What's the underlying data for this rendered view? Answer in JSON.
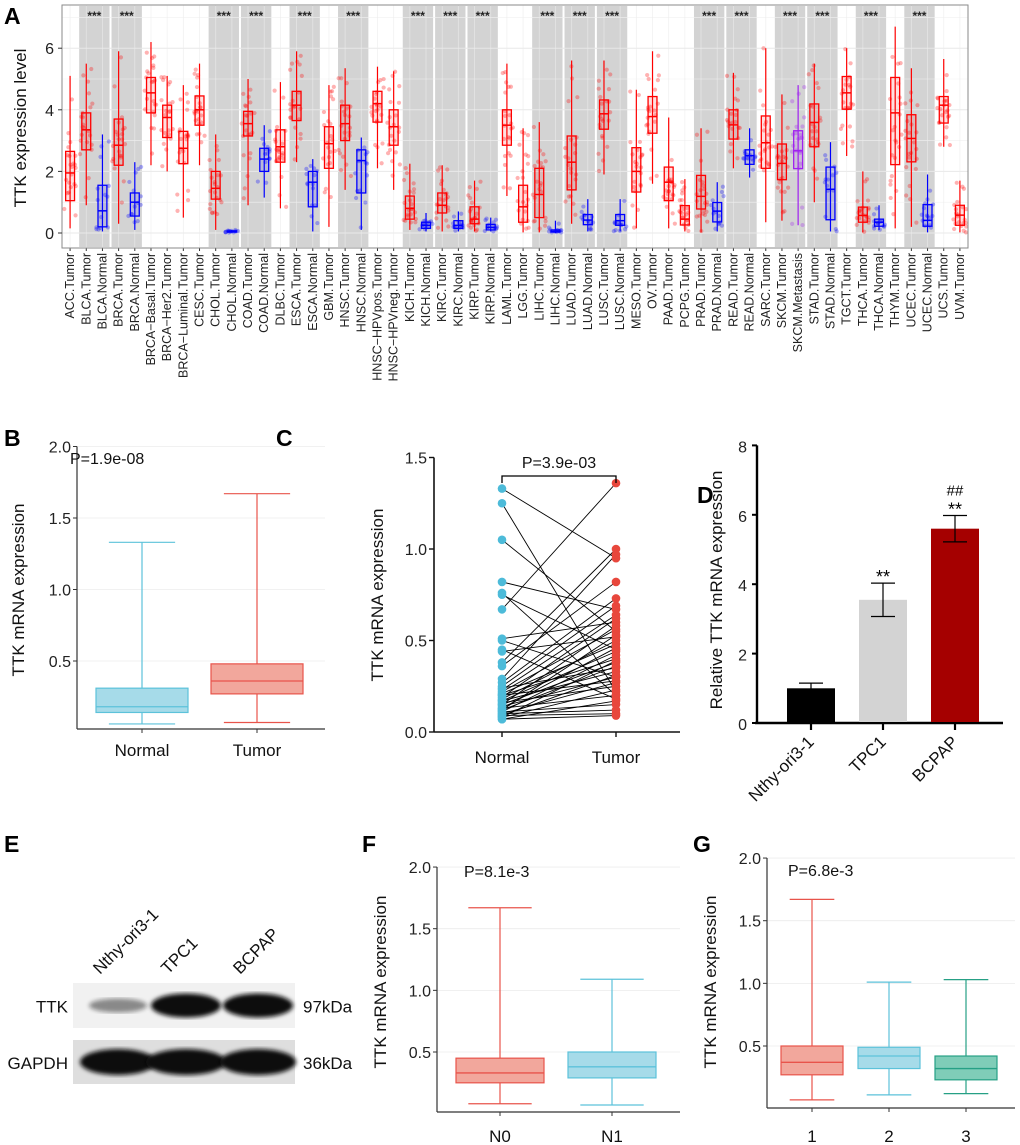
{
  "panel_letters": [
    "A",
    "B",
    "C",
    "D",
    "E",
    "F",
    "G"
  ],
  "colors": {
    "tumor": "#ff0000",
    "normal": "#0000ff",
    "metastasis": "#a020f0",
    "sig_bg": "#d3d3d3",
    "box_normal_fill": "#a6dbe9",
    "box_normal_stroke": "#5cc2da",
    "box_tumor_fill": "#f2a79c",
    "box_tumor_stroke": "#e8544b",
    "box_green_fill": "#7fcdb8",
    "box_green_stroke": "#26a085",
    "bar_black": "#000000",
    "bar_grey": "#d3d3d3",
    "bar_red": "#a50000",
    "dot_normal": "#4dbbd9",
    "dot_tumor": "#e8473c"
  },
  "chart_data": [
    {
      "type": "box",
      "ylabel": "TTK expression level",
      "ylim": [
        -0.5,
        7.4
      ],
      "y_ticks": [
        "0",
        "2",
        "4",
        "6"
      ],
      "grid": true,
      "categories": [
        {
          "label": "ACC.Tumor",
          "group": "tumor",
          "stats": [
            0.15,
            1.05,
            1.95,
            2.65,
            5.1
          ]
        },
        {
          "label": "BLCA.Tumor",
          "group": "tumor",
          "stats": [
            0.9,
            2.7,
            3.35,
            3.9,
            5.5
          ]
        },
        {
          "label": "BLCA.Normal",
          "group": "normal",
          "stats": [
            0.05,
            0.2,
            0.72,
            1.55,
            3.2
          ]
        },
        {
          "label": "BRCA.Tumor",
          "group": "tumor",
          "stats": [
            0.3,
            2.2,
            2.85,
            3.7,
            5.9
          ]
        },
        {
          "label": "BRCA.Normal",
          "group": "normal",
          "stats": [
            0.1,
            0.55,
            1.0,
            1.3,
            2.3
          ]
        },
        {
          "label": "BRCA−Basal.Tumor",
          "group": "tumor",
          "stats": [
            2.2,
            3.9,
            4.55,
            5.05,
            6.2
          ]
        },
        {
          "label": "BRCA−Her2.Tumor",
          "group": "tumor",
          "stats": [
            2.0,
            3.1,
            3.75,
            4.15,
            5.1
          ]
        },
        {
          "label": "BRCA−Luminal.Tumor",
          "group": "tumor",
          "stats": [
            0.5,
            2.25,
            2.75,
            3.3,
            4.8
          ]
        },
        {
          "label": "CESC.Tumor",
          "group": "tumor",
          "stats": [
            2.2,
            3.5,
            4.0,
            4.45,
            5.5
          ]
        },
        {
          "label": "CHOL.Tumor",
          "group": "tumor",
          "stats": [
            0.1,
            1.1,
            1.45,
            2.0,
            3.2
          ]
        },
        {
          "label": "CHOL.Normal",
          "group": "normal",
          "stats": [
            0.01,
            0.03,
            0.05,
            0.07,
            0.1
          ]
        },
        {
          "label": "COAD.Tumor",
          "group": "tumor",
          "stats": [
            0.9,
            3.15,
            3.55,
            3.95,
            5.0
          ]
        },
        {
          "label": "COAD.Normal",
          "group": "normal",
          "stats": [
            1.15,
            2.0,
            2.4,
            2.75,
            3.5
          ]
        },
        {
          "label": "DLBC.Tumor",
          "group": "tumor",
          "stats": [
            0.8,
            2.3,
            2.8,
            3.35,
            4.9
          ]
        },
        {
          "label": "ESCA.Tumor",
          "group": "tumor",
          "stats": [
            2.3,
            3.65,
            4.15,
            4.6,
            5.9
          ]
        },
        {
          "label": "ESCA.Normal",
          "group": "normal",
          "stats": [
            0.05,
            0.85,
            1.65,
            2.0,
            2.4
          ]
        },
        {
          "label": "GBM.Tumor",
          "group": "tumor",
          "stats": [
            0.2,
            2.1,
            2.9,
            3.45,
            4.8
          ]
        },
        {
          "label": "HNSC.Tumor",
          "group": "tumor",
          "stats": [
            1.4,
            3.0,
            3.55,
            4.15,
            5.35
          ]
        },
        {
          "label": "HNSC.Normal",
          "group": "normal",
          "stats": [
            0.1,
            1.3,
            2.35,
            2.7,
            3.1
          ]
        },
        {
          "label": "HNSC−HPVpos.Tumor",
          "group": "tumor",
          "stats": [
            2.1,
            3.6,
            4.2,
            4.6,
            5.4
          ]
        },
        {
          "label": "HNSC−HPVneg.Tumor",
          "group": "tumor",
          "stats": [
            1.4,
            2.85,
            3.45,
            4.0,
            5.25
          ]
        },
        {
          "label": "KICH.Tumor",
          "group": "tumor",
          "stats": [
            0.1,
            0.45,
            0.8,
            1.2,
            2.25
          ]
        },
        {
          "label": "KICH.Normal",
          "group": "normal",
          "stats": [
            0.05,
            0.15,
            0.25,
            0.35,
            0.65
          ]
        },
        {
          "label": "KIRC.Tumor",
          "group": "tumor",
          "stats": [
            0.05,
            0.65,
            0.9,
            1.3,
            2.2
          ]
        },
        {
          "label": "KIRC.Normal",
          "group": "normal",
          "stats": [
            0.05,
            0.15,
            0.25,
            0.4,
            0.7
          ]
        },
        {
          "label": "KIRP.Tumor",
          "group": "tumor",
          "stats": [
            0.05,
            0.3,
            0.45,
            0.85,
            1.7
          ]
        },
        {
          "label": "KIRP.Normal",
          "group": "normal",
          "stats": [
            0.05,
            0.1,
            0.18,
            0.28,
            0.5
          ]
        },
        {
          "label": "LAML.Tumor",
          "group": "tumor",
          "stats": [
            1.2,
            2.85,
            3.5,
            4.0,
            5.5
          ]
        },
        {
          "label": "LGG.Tumor",
          "group": "tumor",
          "stats": [
            0.02,
            0.35,
            0.85,
            1.55,
            3.4
          ]
        },
        {
          "label": "LIHC.Tumor",
          "group": "tumor",
          "stats": [
            0.02,
            0.5,
            1.25,
            2.1,
            3.6
          ]
        },
        {
          "label": "LIHC.Normal",
          "group": "normal",
          "stats": [
            0.0,
            0.03,
            0.05,
            0.1,
            0.4
          ]
        },
        {
          "label": "LUAD.Tumor",
          "group": "tumor",
          "stats": [
            0.3,
            1.4,
            2.3,
            3.15,
            5.6
          ]
        },
        {
          "label": "LUAD.Normal",
          "group": "normal",
          "stats": [
            0.05,
            0.27,
            0.42,
            0.6,
            1.1
          ]
        },
        {
          "label": "LUSC.Tumor",
          "group": "tumor",
          "stats": [
            1.9,
            3.37,
            3.87,
            4.32,
            5.6
          ]
        },
        {
          "label": "LUSC.Normal",
          "group": "normal",
          "stats": [
            0.05,
            0.25,
            0.4,
            0.6,
            1.1
          ]
        },
        {
          "label": "MESO.Tumor",
          "group": "tumor",
          "stats": [
            0.15,
            1.33,
            2.0,
            2.77,
            4.65
          ]
        },
        {
          "label": "OV.Tumor",
          "group": "tumor",
          "stats": [
            1.6,
            3.24,
            3.78,
            4.43,
            5.9
          ]
        },
        {
          "label": "PAAD.Tumor",
          "group": "tumor",
          "stats": [
            0.15,
            1.05,
            1.65,
            2.14,
            3.75
          ]
        },
        {
          "label": "PCPG.Tumor",
          "group": "tumor",
          "stats": [
            0.05,
            0.26,
            0.45,
            0.89,
            1.75
          ]
        },
        {
          "label": "PRAD.Tumor",
          "group": "tumor",
          "stats": [
            0.02,
            0.78,
            1.19,
            1.87,
            3.4
          ]
        },
        {
          "label": "PRAD.Normal",
          "group": "normal",
          "stats": [
            0.05,
            0.36,
            0.71,
            0.99,
            1.65
          ]
        },
        {
          "label": "READ.Tumor",
          "group": "tumor",
          "stats": [
            2.1,
            3.05,
            3.51,
            4.0,
            5.2
          ]
        },
        {
          "label": "READ.Normal",
          "group": "normal",
          "stats": [
            1.8,
            2.23,
            2.51,
            2.7,
            3.4
          ]
        },
        {
          "label": "SARC.Tumor",
          "group": "tumor",
          "stats": [
            0.35,
            2.1,
            2.93,
            3.8,
            6.0
          ]
        },
        {
          "label": "SKCM.Tumor",
          "group": "tumor",
          "stats": [
            0.4,
            1.73,
            2.26,
            2.89,
            4.5
          ]
        },
        {
          "label": "SKCM.Metastasis",
          "group": "metastasis",
          "stats": [
            0.25,
            2.09,
            2.67,
            3.32,
            4.8
          ]
        },
        {
          "label": "STAD.Tumor",
          "group": "tumor",
          "stats": [
            1.0,
            2.8,
            3.59,
            4.19,
            5.5
          ]
        },
        {
          "label": "STAD.Normal",
          "group": "normal",
          "stats": [
            0.05,
            0.43,
            1.42,
            2.14,
            2.95
          ]
        },
        {
          "label": "TGCT.Tumor",
          "group": "tumor",
          "stats": [
            2.5,
            4.02,
            4.55,
            5.08,
            6.0
          ]
        },
        {
          "label": "THCA.Tumor",
          "group": "tumor",
          "stats": [
            0.02,
            0.35,
            0.57,
            0.84,
            2.0
          ]
        },
        {
          "label": "THCA.Normal",
          "group": "normal",
          "stats": [
            0.1,
            0.22,
            0.35,
            0.45,
            0.9
          ]
        },
        {
          "label": "THYM.Tumor",
          "group": "tumor",
          "stats": [
            0.15,
            2.22,
            3.9,
            5.05,
            6.7
          ]
        },
        {
          "label": "UCEC.Tumor",
          "group": "tumor",
          "stats": [
            0.2,
            2.31,
            3.07,
            3.84,
            5.35
          ]
        },
        {
          "label": "UCEC.Normal",
          "group": "normal",
          "stats": [
            0.02,
            0.22,
            0.41,
            0.92,
            1.9
          ]
        },
        {
          "label": "UCS.Tumor",
          "group": "tumor",
          "stats": [
            2.8,
            3.57,
            4.15,
            4.43,
            5.65
          ]
        },
        {
          "label": "UVM.Tumor",
          "group": "tumor",
          "stats": [
            0.02,
            0.25,
            0.58,
            0.9,
            1.7
          ]
        }
      ],
      "significance": [
        {
          "from": "BLCA.Tumor",
          "to": "BLCA.Normal",
          "label": "***"
        },
        {
          "from": "BRCA.Tumor",
          "to": "BRCA.Normal",
          "label": "***"
        },
        {
          "from": "CHOL.Tumor",
          "to": "CHOL.Normal",
          "label": "***"
        },
        {
          "from": "COAD.Tumor",
          "to": "COAD.Normal",
          "label": "***"
        },
        {
          "from": "ESCA.Tumor",
          "to": "ESCA.Normal",
          "label": "***"
        },
        {
          "from": "HNSC.Tumor",
          "to": "HNSC.Normal",
          "label": "***"
        },
        {
          "from": "KICH.Tumor",
          "to": "KICH.Normal",
          "label": "***"
        },
        {
          "from": "KIRC.Tumor",
          "to": "KIRC.Normal",
          "label": "***"
        },
        {
          "from": "KIRP.Tumor",
          "to": "KIRP.Normal",
          "label": "***"
        },
        {
          "from": "LIHC.Tumor",
          "to": "LIHC.Normal",
          "label": "***"
        },
        {
          "from": "LUAD.Tumor",
          "to": "LUAD.Normal",
          "label": "***"
        },
        {
          "from": "LUSC.Tumor",
          "to": "LUSC.Normal",
          "label": "***"
        },
        {
          "from": "PRAD.Tumor",
          "to": "PRAD.Normal",
          "label": "***"
        },
        {
          "from": "READ.Tumor",
          "to": "READ.Normal",
          "label": "***"
        },
        {
          "from": "SKCM.Tumor",
          "to": "SKCM.Metastasis",
          "label": "***"
        },
        {
          "from": "STAD.Tumor",
          "to": "STAD.Normal",
          "label": "***"
        },
        {
          "from": "THCA.Tumor",
          "to": "THCA.Normal",
          "label": "***"
        },
        {
          "from": "UCEC.Tumor",
          "to": "UCEC.Normal",
          "label": "***"
        }
      ]
    },
    {
      "type": "box",
      "ylabel": "TTK mRNA expression",
      "ylim": [
        0.03,
        2.0
      ],
      "y_ticks": [
        "0.5",
        "1.0",
        "1.5",
        "2.0"
      ],
      "annotation": "P=1.9e-08",
      "categories": [
        {
          "label": "Normal",
          "color": "normal",
          "stats": [
            0.06,
            0.14,
            0.18,
            0.31,
            1.33
          ]
        },
        {
          "label": "Tumor",
          "color": "tumor",
          "stats": [
            0.07,
            0.27,
            0.36,
            0.48,
            1.67
          ]
        }
      ]
    },
    {
      "type": "scatter",
      "subtype": "paired",
      "ylabel": "TTK mRNA expression",
      "ylim": [
        0.0,
        1.5
      ],
      "y_ticks": [
        "0.0",
        "0.5",
        "1.0",
        "1.5"
      ],
      "annotation": "P=3.9e-03",
      "categories": [
        "Normal",
        "Tumor"
      ],
      "pairs": [
        [
          1.33,
          0.95
        ],
        [
          1.25,
          0.22
        ],
        [
          1.05,
          0.55
        ],
        [
          0.82,
          0.67
        ],
        [
          0.76,
          0.2
        ],
        [
          0.75,
          0.45
        ],
        [
          0.67,
          1.36
        ],
        [
          0.51,
          0.6
        ],
        [
          0.5,
          0.3
        ],
        [
          0.45,
          0.18
        ],
        [
          0.44,
          0.52
        ],
        [
          0.38,
          1.0
        ],
        [
          0.36,
          0.82
        ],
        [
          0.29,
          0.97
        ],
        [
          0.27,
          0.73
        ],
        [
          0.25,
          0.69
        ],
        [
          0.24,
          0.35
        ],
        [
          0.23,
          0.64
        ],
        [
          0.22,
          0.56
        ],
        [
          0.21,
          0.48
        ],
        [
          0.2,
          0.4
        ],
        [
          0.2,
          0.28
        ],
        [
          0.19,
          0.62
        ],
        [
          0.18,
          0.5
        ],
        [
          0.17,
          0.33
        ],
        [
          0.17,
          0.44
        ],
        [
          0.16,
          0.25
        ],
        [
          0.15,
          0.58
        ],
        [
          0.15,
          0.38
        ],
        [
          0.14,
          0.3
        ],
        [
          0.13,
          0.46
        ],
        [
          0.13,
          0.2
        ],
        [
          0.12,
          0.36
        ],
        [
          0.12,
          0.53
        ],
        [
          0.11,
          0.15
        ],
        [
          0.11,
          0.42
        ],
        [
          0.1,
          0.27
        ],
        [
          0.1,
          0.12
        ],
        [
          0.09,
          0.31
        ],
        [
          0.09,
          0.1
        ],
        [
          0.08,
          0.23
        ],
        [
          0.08,
          0.39
        ],
        [
          0.07,
          0.17
        ],
        [
          0.07,
          0.09
        ]
      ]
    },
    {
      "type": "bar",
      "ylabel": "Relative TTK mRNA expression",
      "ylim": [
        0,
        8
      ],
      "y_ticks": [
        "0",
        "2",
        "4",
        "6",
        "8"
      ],
      "categories": [
        "Nthy-ori3-1",
        "TPC1",
        "BCPAP"
      ],
      "values": [
        1.0,
        3.55,
        5.6
      ],
      "errors": [
        0.15,
        0.48,
        0.38
      ],
      "bar_colors": [
        "bar_black",
        "bar_grey",
        "bar_red"
      ],
      "annotations": [
        [],
        [
          "**"
        ],
        [
          "**",
          "##"
        ]
      ]
    },
    {
      "type": "box",
      "ylabel": "TTK mRNA expression",
      "ylim": [
        0.02,
        2.0
      ],
      "y_ticks": [
        "0.5",
        "1.0",
        "1.5",
        "2.0"
      ],
      "annotation": "P=8.1e-3",
      "categories": [
        {
          "label": "N0",
          "color": "tumor",
          "stats": [
            0.08,
            0.25,
            0.33,
            0.45,
            1.67
          ]
        },
        {
          "label": "N1",
          "color": "normal",
          "stats": [
            0.07,
            0.29,
            0.38,
            0.5,
            1.09
          ]
        }
      ]
    },
    {
      "type": "box",
      "ylabel": "TTK mRNA expression",
      "ylim": [
        0.01,
        2.0
      ],
      "y_ticks": [
        "0.5",
        "1.0",
        "1.5",
        "2.0"
      ],
      "annotation": "P=6.8e-3",
      "categories": [
        {
          "label": "1",
          "color": "tumor",
          "stats": [
            0.07,
            0.27,
            0.37,
            0.5,
            1.67
          ]
        },
        {
          "label": "2",
          "color": "normal",
          "stats": [
            0.11,
            0.32,
            0.42,
            0.49,
            1.01
          ]
        },
        {
          "label": "3",
          "color": "green",
          "stats": [
            0.12,
            0.23,
            0.32,
            0.42,
            1.03
          ]
        }
      ]
    }
  ],
  "western_blot": {
    "lanes": [
      "Nthy-ori3-1",
      "TPC1",
      "BCPAP"
    ],
    "rows": [
      {
        "label": "TTK",
        "size": "97kDa"
      },
      {
        "label": "GAPDH",
        "size": "36kDa"
      }
    ]
  }
}
